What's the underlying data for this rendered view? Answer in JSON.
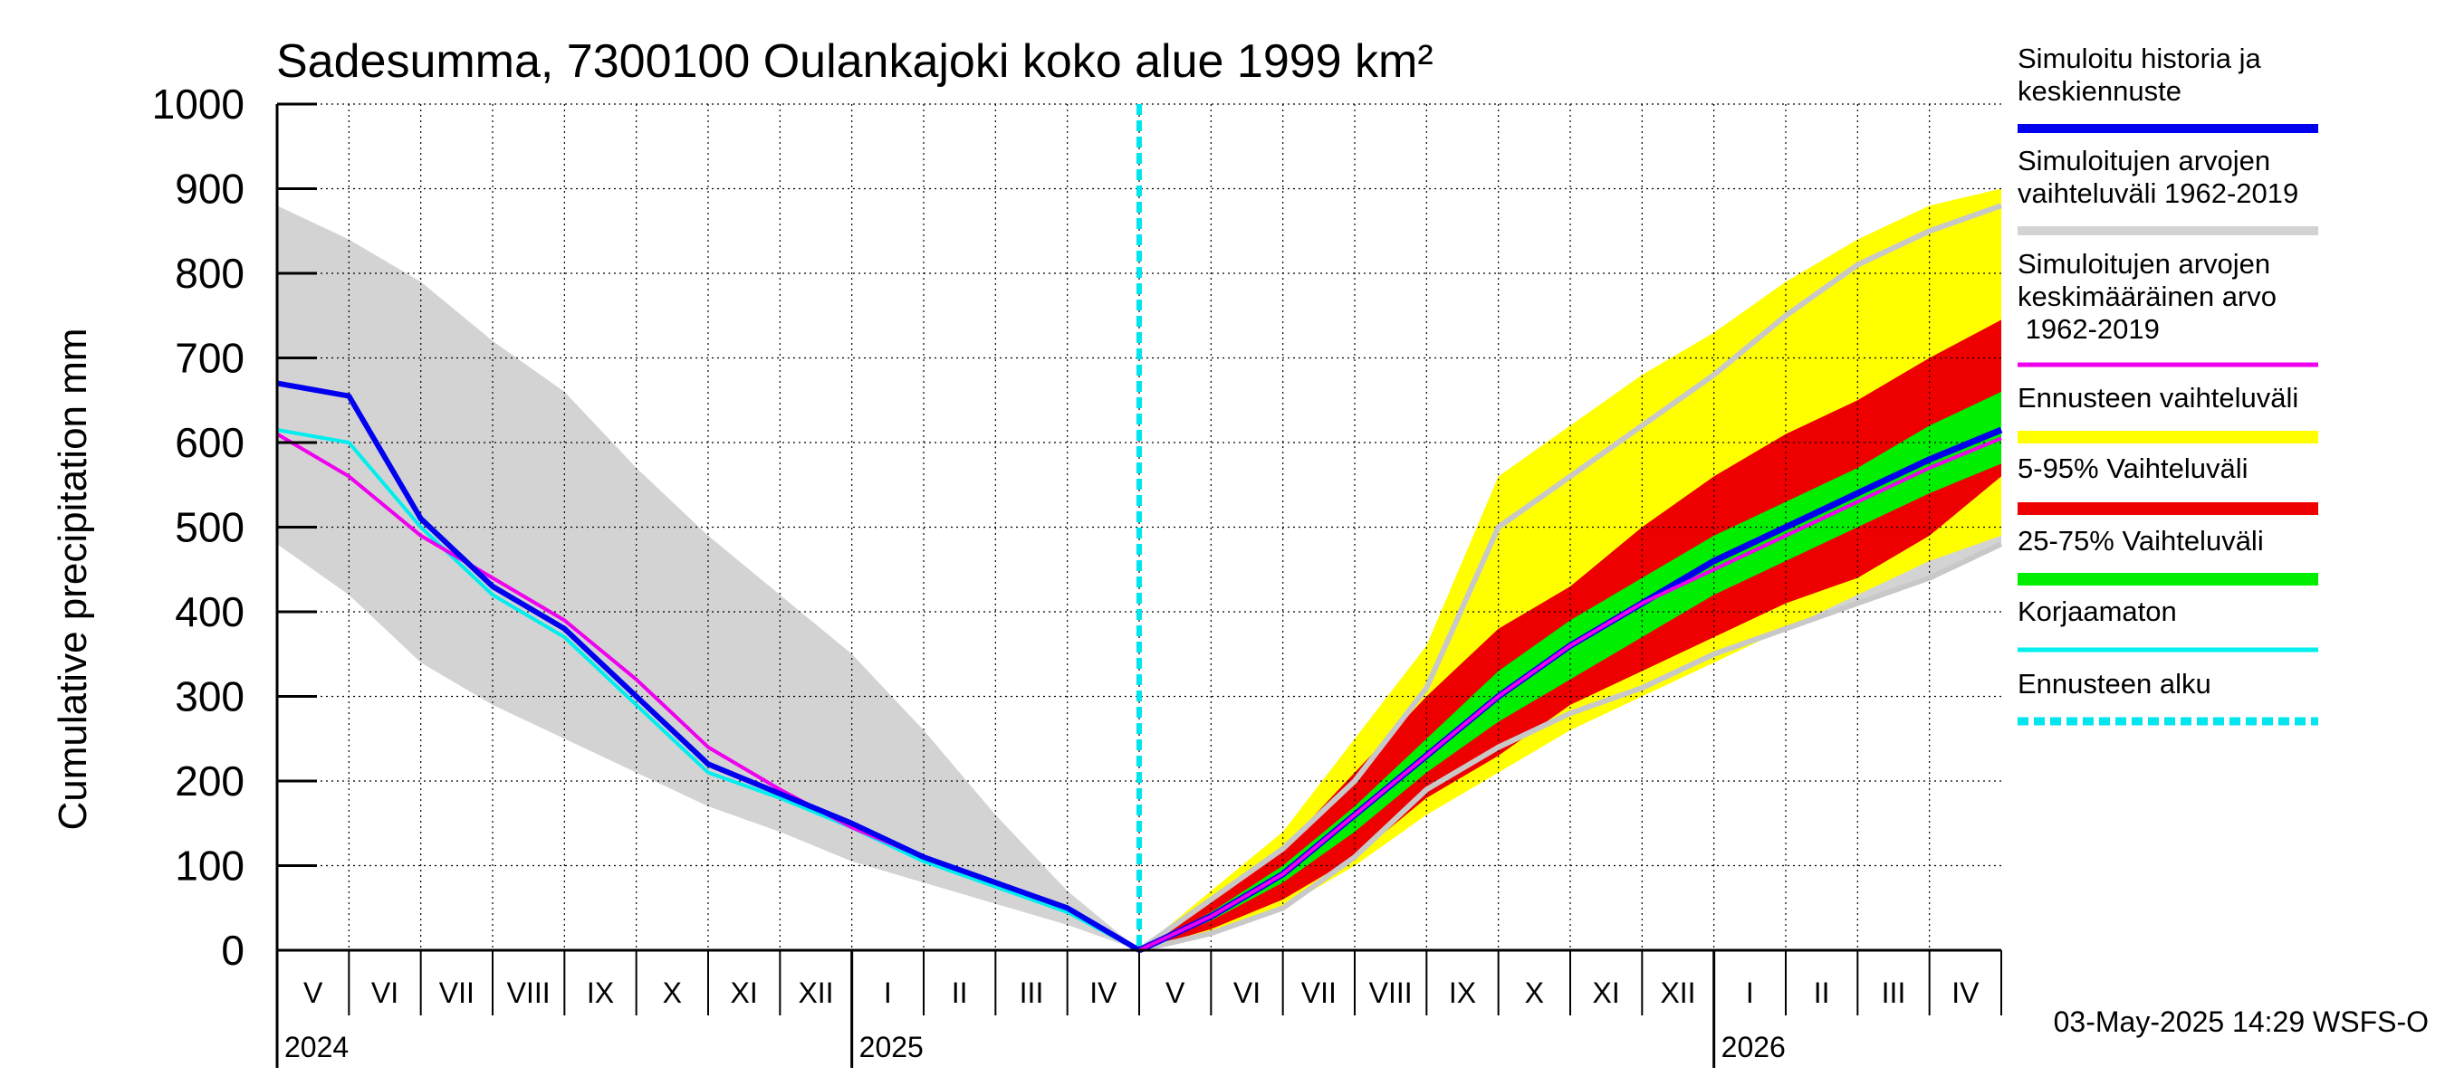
{
  "chart_data": {
    "type": "area",
    "title": "Sadesumma, 7300100 Oulankajoki koko alue 1999 km²",
    "ylabel": "Cumulative precipitation   mm",
    "xlabel": "",
    "ylim": [
      0,
      1000
    ],
    "y_ticks": [
      "0",
      "100",
      "200",
      "300",
      "400",
      "500",
      "600",
      "700",
      "800",
      "900",
      "1000"
    ],
    "month_labels": [
      "V",
      "VI",
      "VII",
      "VIII",
      "IX",
      "X",
      "XI",
      "XII",
      "I",
      "II",
      "III",
      "IV",
      "V",
      "VI",
      "VII",
      "VIII",
      "IX",
      "X",
      "XI",
      "XII",
      "I",
      "II",
      "III",
      "IV"
    ],
    "year_labels": [
      "2024",
      "2025",
      "2026"
    ],
    "forecast_start_index": 12,
    "timestamp": "03-May-2025 14:29 WSFS-O",
    "legend": [
      {
        "label": "Simuloitu historia ja\nkeskiennuste",
        "color": "#0000ee"
      },
      {
        "label": "Simuloitujen arvojen\nvaihteluväli 1962-2019",
        "color": "#d3d3d3"
      },
      {
        "label": "Simuloitujen arvojen\nkeskimääräinen arvo\n   1962-2019",
        "color": "#ee00ee"
      },
      {
        "label": "Ennusteen vaihteluväli",
        "color": "#ffff00"
      },
      {
        "label": "5-95% Vaihteluväli",
        "color": "#ee0000"
      },
      {
        "label": "25-75% Vaihteluväli",
        "color": "#00ee00"
      },
      {
        "label": "Korjaamaton",
        "color": "#00eeee"
      },
      {
        "label": "Ennusteen alku",
        "color": "#00e5ee"
      }
    ],
    "x_months": [
      0,
      1,
      2,
      3,
      4,
      5,
      6,
      7,
      8,
      9,
      10,
      11,
      12,
      13,
      14,
      15,
      16,
      17,
      18,
      19,
      20,
      21,
      22,
      23,
      24
    ],
    "series": [
      {
        "name": "hist_range_upper",
        "values": [
          880,
          840,
          790,
          720,
          660,
          570,
          490,
          420,
          350,
          260,
          160,
          70,
          0
        ]
      },
      {
        "name": "hist_range_lower",
        "values": [
          480,
          420,
          340,
          290,
          250,
          210,
          170,
          140,
          105,
          80,
          55,
          30,
          0
        ]
      },
      {
        "name": "simulated_history",
        "values": [
          670,
          655,
          510,
          430,
          380,
          300,
          220,
          185,
          150,
          110,
          80,
          50,
          0
        ]
      },
      {
        "name": "uncorrected",
        "values": [
          615,
          600,
          500,
          420,
          370,
          290,
          210,
          180,
          145,
          105,
          75,
          45,
          0
        ]
      },
      {
        "name": "hist_mean_past",
        "values": [
          610,
          560,
          490,
          440,
          390,
          320,
          240,
          190,
          145,
          110,
          80,
          50,
          0
        ]
      },
      {
        "name": "hist_range_upper_future",
        "values": [
          0,
          60,
          120,
          200,
          310,
          500,
          560,
          620,
          680,
          750,
          810,
          850,
          880
        ]
      },
      {
        "name": "hist_range_lower_future",
        "values": [
          0,
          20,
          50,
          110,
          190,
          240,
          280,
          310,
          350,
          380,
          410,
          440,
          480
        ]
      },
      {
        "name": "forecast_max",
        "values": [
          0,
          70,
          140,
          250,
          360,
          560,
          620,
          680,
          730,
          790,
          840,
          880,
          900
        ]
      },
      {
        "name": "p95",
        "values": [
          0,
          60,
          120,
          210,
          300,
          380,
          430,
          500,
          560,
          610,
          650,
          700,
          745
        ]
      },
      {
        "name": "p75",
        "values": [
          0,
          45,
          100,
          170,
          250,
          330,
          390,
          440,
          490,
          530,
          570,
          620,
          660
        ]
      },
      {
        "name": "median",
        "values": [
          0,
          40,
          90,
          160,
          230,
          300,
          360,
          410,
          460,
          500,
          540,
          580,
          615
        ]
      },
      {
        "name": "p25",
        "values": [
          0,
          35,
          80,
          140,
          210,
          270,
          320,
          370,
          420,
          460,
          500,
          540,
          575
        ]
      },
      {
        "name": "p5",
        "values": [
          0,
          25,
          60,
          110,
          180,
          230,
          290,
          330,
          370,
          410,
          440,
          490,
          560
        ]
      },
      {
        "name": "forecast_min",
        "values": [
          0,
          20,
          50,
          100,
          160,
          210,
          260,
          300,
          340,
          380,
          420,
          460,
          490
        ]
      },
      {
        "name": "hist_mean_future",
        "values": [
          0,
          40,
          90,
          160,
          230,
          300,
          360,
          410,
          450,
          490,
          530,
          570,
          605
        ]
      }
    ]
  }
}
